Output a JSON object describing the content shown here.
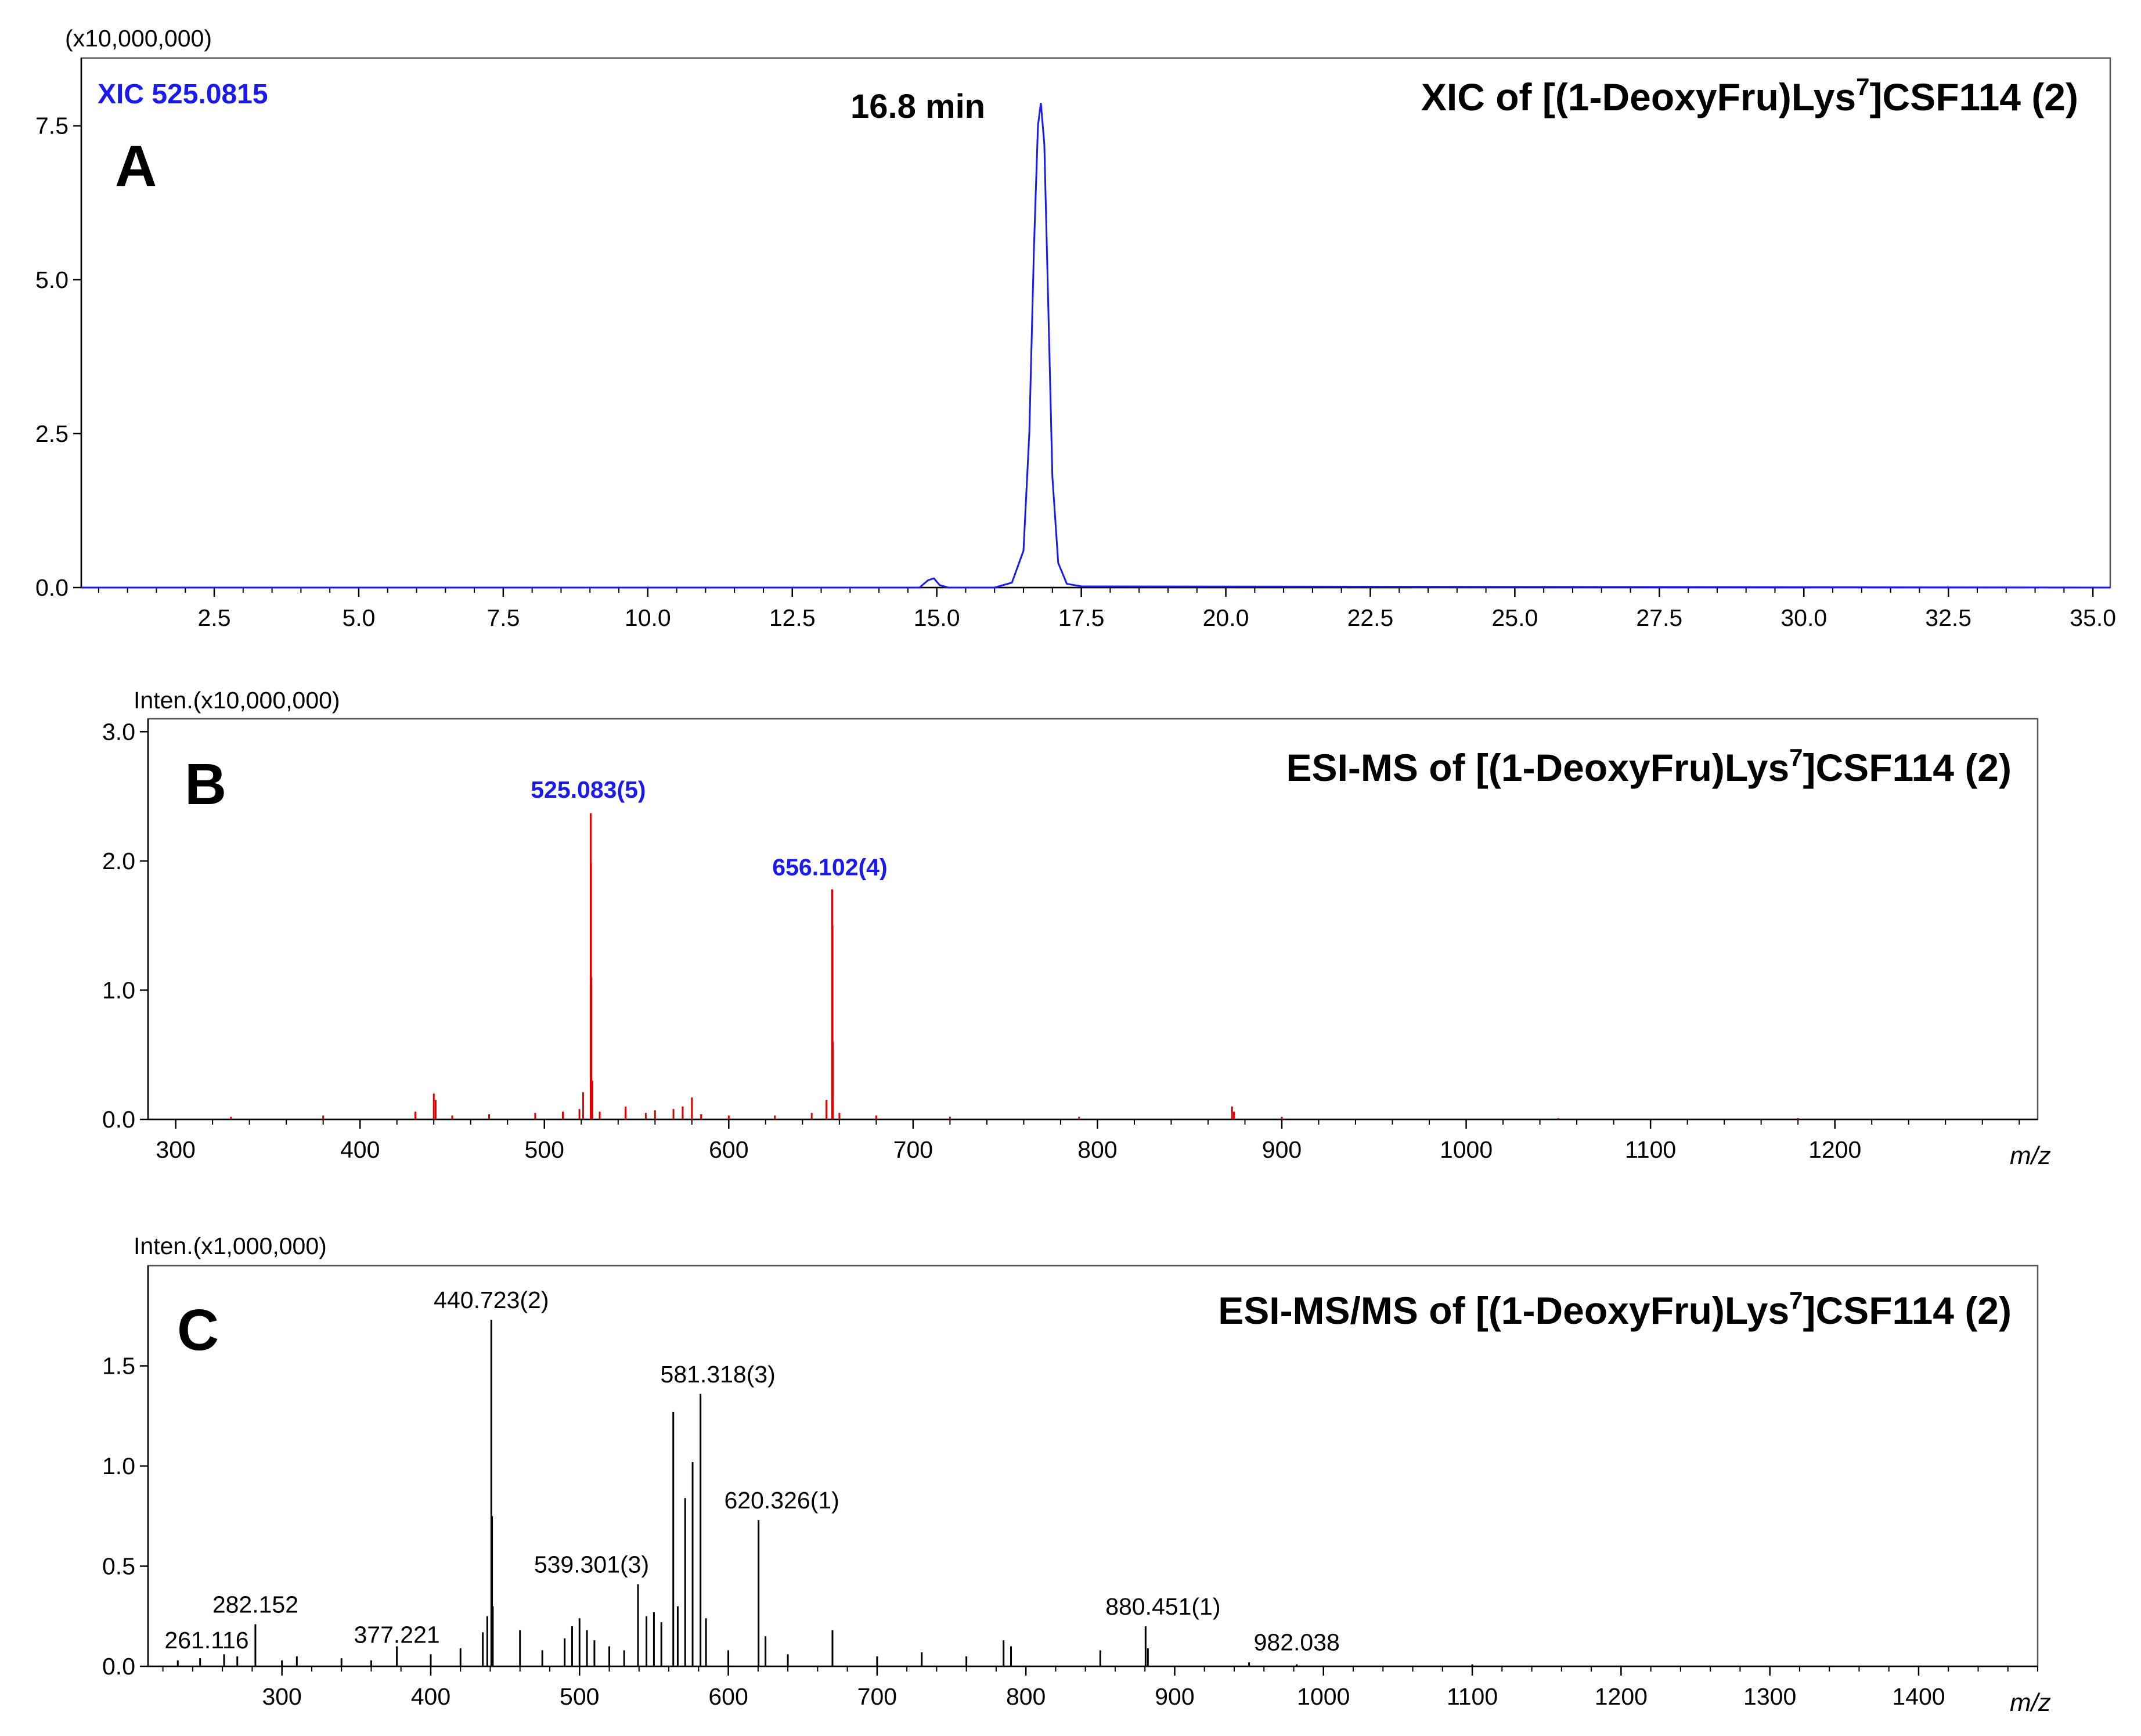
{
  "chart_data": [
    {
      "type": "line",
      "panel": "A",
      "title": "XIC of [(1-DeoxyFru)Lys7]CSF114 (2)",
      "title_parts": {
        "pre": "XIC of [(1-DeoxyFru)Lys",
        "sup": "7",
        "post": "]CSF114 (2)"
      },
      "scale_label": "(x10,000,000)",
      "trace_label": "XIC 525.0815",
      "peak_annotation": "16.8 min",
      "xlabel": "",
      "ylabel": "",
      "xlim": [
        0.2,
        35.3
      ],
      "ylim": [
        0,
        8.6
      ],
      "xticks": [
        "2.5",
        "5.0",
        "7.5",
        "10.0",
        "12.5",
        "15.0",
        "17.5",
        "20.0",
        "22.5",
        "25.0",
        "27.5",
        "30.0",
        "32.5",
        "35.0"
      ],
      "yticks": [
        "0.0",
        "2.5",
        "5.0",
        "7.5"
      ],
      "line_color": "#1a1aee",
      "x": [
        0.2,
        14.7,
        14.85,
        14.95,
        15.05,
        15.2,
        16.0,
        16.3,
        16.5,
        16.6,
        16.68,
        16.75,
        16.8,
        16.86,
        16.93,
        17.0,
        17.1,
        17.25,
        17.5,
        35.3
      ],
      "y": [
        0.0,
        0.0,
        0.12,
        0.15,
        0.04,
        0.0,
        0.0,
        0.08,
        0.6,
        2.5,
        5.5,
        7.5,
        7.87,
        7.2,
        4.5,
        1.8,
        0.4,
        0.06,
        0.02,
        0.0
      ]
    },
    {
      "type": "bar",
      "panel": "B",
      "title": "ESI-MS of [(1-DeoxyFru)Lys7]CSF114 (2)",
      "title_parts": {
        "pre": "ESI-MS of [(1-DeoxyFru)Lys",
        "sup": "7",
        "post": "]CSF114 (2)"
      },
      "scale_label": "Inten.(x10,000,000)",
      "xlabel": "m/z",
      "ylabel": "",
      "xlim": [
        285,
        1310
      ],
      "ylim": [
        0,
        3.1
      ],
      "xticks": [
        "300",
        "400",
        "500",
        "600",
        "700",
        "800",
        "900",
        "1000",
        "1100",
        "1200"
      ],
      "yticks": [
        "0.0",
        "1.0",
        "2.0",
        "3.0"
      ],
      "bar_color": "#dd0000",
      "annotations": [
        {
          "text": "525.083(5)",
          "x": 525.083,
          "y": 2.4
        },
        {
          "text": "656.102(4)",
          "x": 656.102,
          "y": 1.8
        }
      ],
      "peaks": [
        {
          "x": 330,
          "y": 0.02
        },
        {
          "x": 380,
          "y": 0.03
        },
        {
          "x": 430,
          "y": 0.06
        },
        {
          "x": 440,
          "y": 0.2
        },
        {
          "x": 441,
          "y": 0.15
        },
        {
          "x": 450,
          "y": 0.03
        },
        {
          "x": 470,
          "y": 0.04
        },
        {
          "x": 495,
          "y": 0.05
        },
        {
          "x": 510,
          "y": 0.06
        },
        {
          "x": 519,
          "y": 0.08
        },
        {
          "x": 521,
          "y": 0.21
        },
        {
          "x": 525.083,
          "y": 2.37
        },
        {
          "x": 525.3,
          "y": 1.98
        },
        {
          "x": 525.5,
          "y": 1.1
        },
        {
          "x": 526,
          "y": 0.3
        },
        {
          "x": 530,
          "y": 0.06
        },
        {
          "x": 544,
          "y": 0.1
        },
        {
          "x": 555,
          "y": 0.05
        },
        {
          "x": 560,
          "y": 0.07
        },
        {
          "x": 570,
          "y": 0.08
        },
        {
          "x": 575,
          "y": 0.1
        },
        {
          "x": 580,
          "y": 0.17
        },
        {
          "x": 585,
          "y": 0.04
        },
        {
          "x": 600,
          "y": 0.03
        },
        {
          "x": 625,
          "y": 0.03
        },
        {
          "x": 645,
          "y": 0.05
        },
        {
          "x": 653,
          "y": 0.15
        },
        {
          "x": 656.102,
          "y": 1.78
        },
        {
          "x": 656.3,
          "y": 1.5
        },
        {
          "x": 656.5,
          "y": 0.6
        },
        {
          "x": 660,
          "y": 0.05
        },
        {
          "x": 680,
          "y": 0.03
        },
        {
          "x": 720,
          "y": 0.02
        },
        {
          "x": 790,
          "y": 0.02
        },
        {
          "x": 873,
          "y": 0.1
        },
        {
          "x": 874,
          "y": 0.06
        },
        {
          "x": 900,
          "y": 0.02
        },
        {
          "x": 1050,
          "y": 0.01
        },
        {
          "x": 1180,
          "y": 0.01
        }
      ]
    },
    {
      "type": "bar",
      "panel": "C",
      "title": "ESI-MS/MS of [(1-DeoxyFru)Lys7]CSF114 (2)",
      "title_parts": {
        "pre": "ESI-MS/MS of [(1-DeoxyFru)Lys",
        "sup": "7",
        "post": "]CSF114 (2)"
      },
      "scale_label": "Inten.(x1,000,000)",
      "xlabel": "m/z",
      "ylabel": "",
      "xlim": [
        210,
        1480
      ],
      "ylim": [
        0,
        2.0
      ],
      "xticks": [
        "300",
        "400",
        "500",
        "600",
        "700",
        "800",
        "900",
        "1000",
        "1100",
        "1200",
        "1300",
        "1400"
      ],
      "yticks": [
        "0.0",
        "0.5",
        "1.0",
        "1.5"
      ],
      "bar_color": "#000000",
      "annotations": [
        {
          "text": "440.723(2)",
          "x": 440.723,
          "y": 1.73
        },
        {
          "text": "581.318(3)",
          "x": 581.318,
          "y": 1.36
        },
        {
          "text": "620.326(1)",
          "x": 620.326,
          "y": 0.73
        },
        {
          "text": "539.301(3)",
          "x": 539.301,
          "y": 0.41
        },
        {
          "text": "282.152",
          "x": 282.152,
          "y": 0.21
        },
        {
          "text": "377.221",
          "x": 377.221,
          "y": 0.06
        },
        {
          "text": "261.116",
          "x": 261.116,
          "y": 0.05
        },
        {
          "text": "880.451(1)",
          "x": 880.451,
          "y": 0.2
        },
        {
          "text": "982.038",
          "x": 982.038,
          "y": 0.01
        }
      ],
      "peaks": [
        {
          "x": 230,
          "y": 0.03
        },
        {
          "x": 245,
          "y": 0.04
        },
        {
          "x": 261.116,
          "y": 0.06
        },
        {
          "x": 270,
          "y": 0.05
        },
        {
          "x": 282.152,
          "y": 0.21
        },
        {
          "x": 300,
          "y": 0.03
        },
        {
          "x": 310,
          "y": 0.05
        },
        {
          "x": 340,
          "y": 0.04
        },
        {
          "x": 360,
          "y": 0.03
        },
        {
          "x": 377.221,
          "y": 0.1
        },
        {
          "x": 400,
          "y": 0.06
        },
        {
          "x": 420,
          "y": 0.09
        },
        {
          "x": 435,
          "y": 0.17
        },
        {
          "x": 438,
          "y": 0.25
        },
        {
          "x": 440.723,
          "y": 1.73
        },
        {
          "x": 441.2,
          "y": 0.75
        },
        {
          "x": 441.7,
          "y": 0.3
        },
        {
          "x": 460,
          "y": 0.18
        },
        {
          "x": 475,
          "y": 0.08
        },
        {
          "x": 490,
          "y": 0.14
        },
        {
          "x": 495,
          "y": 0.2
        },
        {
          "x": 500,
          "y": 0.24
        },
        {
          "x": 505,
          "y": 0.18
        },
        {
          "x": 510,
          "y": 0.13
        },
        {
          "x": 520,
          "y": 0.1
        },
        {
          "x": 530,
          "y": 0.08
        },
        {
          "x": 539.301,
          "y": 0.41
        },
        {
          "x": 545,
          "y": 0.25
        },
        {
          "x": 550,
          "y": 0.27
        },
        {
          "x": 555,
          "y": 0.22
        },
        {
          "x": 563,
          "y": 1.27
        },
        {
          "x": 566,
          "y": 0.3
        },
        {
          "x": 571,
          "y": 0.84
        },
        {
          "x": 576,
          "y": 1.02
        },
        {
          "x": 581.318,
          "y": 1.36
        },
        {
          "x": 585,
          "y": 0.24
        },
        {
          "x": 600,
          "y": 0.08
        },
        {
          "x": 620.326,
          "y": 0.73
        },
        {
          "x": 625,
          "y": 0.15
        },
        {
          "x": 640,
          "y": 0.06
        },
        {
          "x": 670,
          "y": 0.18
        },
        {
          "x": 700,
          "y": 0.05
        },
        {
          "x": 730,
          "y": 0.07
        },
        {
          "x": 760,
          "y": 0.05
        },
        {
          "x": 785,
          "y": 0.13
        },
        {
          "x": 790,
          "y": 0.1
        },
        {
          "x": 850,
          "y": 0.08
        },
        {
          "x": 880.451,
          "y": 0.2
        },
        {
          "x": 882,
          "y": 0.09
        },
        {
          "x": 950,
          "y": 0.02
        },
        {
          "x": 982.038,
          "y": 0.01
        },
        {
          "x": 1100,
          "y": 0.01
        }
      ]
    }
  ]
}
